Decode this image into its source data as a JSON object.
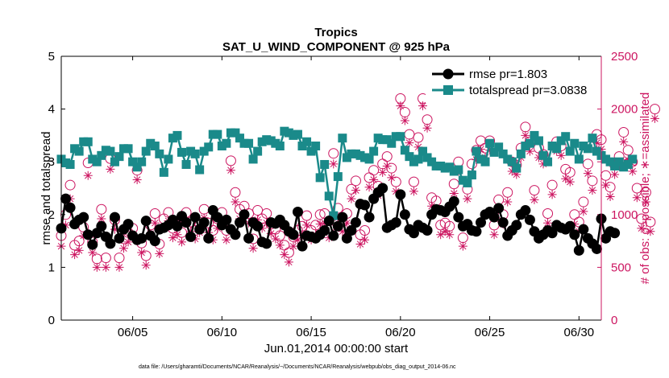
{
  "chart_data": {
    "type": "line",
    "title": "Tropics",
    "subtitle": "SAT_U_WIND_COMPONENT @ 925 hPa",
    "xlabel": "Jun.01,2014 00:00:00 start",
    "ylabel_left": "rmse and totalspread",
    "ylabel_right": "# of obs: o=possible; ∗=assimilated",
    "footnote": "data file: /Users/gharamti/Documents/NCAR/Reanalysis/~/Documents/NCAR/Reanalysis/webpub/obs_diag_output_2014-06.nc",
    "x_range_days": [
      1.0,
      31.25
    ],
    "ylim_left": [
      0,
      5
    ],
    "ylim_right": [
      0,
      2500
    ],
    "x_ticks": [
      5,
      10,
      15,
      20,
      25,
      30
    ],
    "x_tick_labels": [
      "06/05",
      "06/10",
      "06/15",
      "06/20",
      "06/25",
      "06/30"
    ],
    "y_left_ticks": [
      "0",
      "1",
      "2",
      "3",
      "4",
      "5"
    ],
    "y_right_ticks": [
      "0",
      "500",
      "1000",
      "1500",
      "2000",
      "2500"
    ],
    "colors": {
      "rmse": "#000000",
      "spread": "#1a8a8a",
      "obs": "#cc1560"
    },
    "x_start": 1.0,
    "x_step": 0.25,
    "series": [
      {
        "name": "rmse",
        "legend": "rmse pr=1.803",
        "axis": "left",
        "values": [
          1.74,
          2.3,
          2.13,
          1.82,
          1.9,
          1.95,
          1.62,
          1.43,
          1.65,
          1.78,
          1.58,
          1.45,
          1.95,
          1.55,
          1.72,
          1.82,
          1.6,
          1.52,
          1.55,
          1.88,
          1.6,
          1.5,
          1.72,
          1.75,
          1.8,
          1.9,
          1.78,
          1.97,
          1.85,
          1.58,
          1.95,
          1.72,
          1.85,
          1.55,
          2.08,
          1.95,
          1.8,
          1.9,
          1.72,
          1.62,
          1.85,
          2.0,
          1.55,
          1.85,
          1.78,
          1.48,
          1.45,
          1.85,
          1.83,
          1.9,
          1.8,
          1.68,
          1.62,
          2.05,
          1.4,
          1.6,
          1.58,
          1.55,
          1.62,
          1.7,
          1.88,
          1.6,
          1.78,
          1.95,
          1.55,
          1.7,
          1.85,
          2.2,
          2.18,
          1.95,
          2.3,
          2.42,
          2.5,
          1.75,
          1.8,
          1.85,
          2.38,
          2.0,
          1.72,
          1.65,
          1.8,
          1.75,
          1.7,
          2.0,
          2.1,
          2.08,
          2.05,
          2.15,
          2.25,
          1.95,
          1.78,
          1.82,
          1.7,
          1.68,
          1.85,
          2.0,
          2.05,
          1.95,
          2.12,
          1.85,
          1.6,
          1.7,
          1.8,
          2.0,
          2.08,
          1.9,
          1.68,
          1.55,
          1.62,
          1.7,
          1.65,
          1.8,
          1.75,
          1.72,
          1.78,
          1.62,
          1.32,
          1.72,
          1.55,
          1.45,
          1.35,
          1.92,
          1.55,
          1.68,
          1.65
        ]
      },
      {
        "name": "totalspread",
        "legend": "totalspread pr=3.0838",
        "axis": "left",
        "values": [
          3.05,
          2.98,
          2.95,
          3.25,
          3.2,
          3.38,
          3.38,
          3.05,
          3.0,
          3.12,
          3.22,
          3.2,
          3.0,
          3.1,
          3.25,
          3.25,
          3.0,
          2.9,
          3.0,
          3.2,
          3.35,
          3.3,
          3.15,
          2.8,
          3.05,
          3.45,
          3.5,
          3.18,
          2.95,
          3.2,
          3.15,
          2.85,
          3.2,
          3.28,
          3.52,
          3.52,
          3.3,
          3.35,
          3.55,
          3.55,
          3.45,
          3.35,
          3.35,
          3.05,
          3.2,
          3.38,
          3.42,
          3.4,
          3.35,
          3.3,
          3.58,
          3.55,
          3.5,
          3.52,
          3.3,
          3.38,
          3.2,
          3.3,
          2.7,
          2.95,
          2.35,
          1.98,
          2.72,
          3.45,
          3.08,
          3.15,
          3.15,
          3.12,
          3.08,
          3.05,
          3.2,
          3.45,
          3.42,
          3.42,
          3.35,
          3.48,
          3.48,
          3.22,
          3.1,
          3.0,
          3.05,
          3.2,
          3.08,
          3.0,
          2.92,
          2.92,
          2.88,
          2.9,
          2.82,
          2.85,
          2.65,
          2.6,
          2.75,
          3.2,
          3.05,
          3.0,
          3.35,
          3.18,
          3.28,
          3.15,
          3.05,
          3.0,
          2.88,
          3.15,
          3.3,
          3.35,
          3.5,
          3.4,
          3.12,
          3.0,
          3.3,
          3.25,
          3.4,
          3.48,
          3.2,
          3.35,
          3.05,
          3.3,
          3.25,
          3.45,
          3.2,
          3.12,
          3.05,
          3.0,
          2.92,
          3.0,
          2.9,
          2.95,
          3.05
        ]
      },
      {
        "name": "obs_possible",
        "axis": "right",
        "values": [
          800,
          1000,
          1280,
          710,
          750,
          880,
          1490,
          740,
          580,
          1050,
          590,
          1530,
          950,
          590,
          770,
          830,
          870,
          1420,
          730,
          610,
          900,
          1010,
          720,
          960,
          1020,
          870,
          900,
          830,
          1020,
          930,
          850,
          910,
          1050,
          920,
          850,
          960,
          1020,
          850,
          1510,
          1210,
          1050,
          1080,
          1010,
          770,
          1040,
          960,
          1010,
          910,
          860,
          800,
          710,
          640,
          790,
          850,
          890,
          990,
          850,
          900,
          1000,
          1010,
          870,
          1580,
          1060,
          930,
          1010,
          1240,
          1320,
          810,
          850,
          1350,
          1420,
          1270,
          1480,
          1550,
          1440,
          1310,
          2100,
          1970,
          1760,
          1310,
          1730,
          2100,
          1900,
          1160,
          1130,
          900,
          920,
          890,
          1290,
          1500,
          780,
          1240,
          1480,
          1610,
          1700,
          1630,
          1700,
          900,
          1140,
          1000,
          1210,
          1500,
          1470,
          1630,
          1830,
          1690,
          1230,
          1630,
          1570,
          1010,
          1280,
          1690,
          1650,
          1430,
          1400,
          1000,
          930,
          1120,
          1480,
          1320,
          1760,
          1710,
          1370,
          1260,
          1470,
          1550,
          1780,
          1610,
          1500,
          1250,
          960,
          1210,
          930,
          2000
        ]
      },
      {
        "name": "obs_assimilated",
        "axis": "right",
        "values": [
          700,
          900,
          1150,
          620,
          660,
          800,
          1370,
          640,
          500,
          960,
          500,
          1430,
          860,
          500,
          680,
          740,
          780,
          1330,
          640,
          520,
          820,
          920,
          630,
          870,
          940,
          780,
          810,
          740,
          930,
          840,
          770,
          830,
          970,
          830,
          760,
          870,
          930,
          760,
          1420,
          1120,
          960,
          990,
          920,
          680,
          950,
          870,
          920,
          820,
          770,
          710,
          620,
          550,
          700,
          760,
          800,
          900,
          760,
          810,
          910,
          920,
          780,
          1480,
          970,
          840,
          920,
          1150,
          1230,
          720,
          760,
          1260,
          1330,
          1180,
          1400,
          1460,
          1350,
          1220,
          2030,
          1890,
          1680,
          1220,
          1640,
          2030,
          1820,
          1080,
          1050,
          810,
          840,
          810,
          1200,
          1410,
          700,
          1150,
          1390,
          1520,
          1620,
          1540,
          1610,
          810,
          1060,
          910,
          1120,
          1410,
          1380,
          1540,
          1750,
          1600,
          1140,
          1540,
          1480,
          920,
          1190,
          1600,
          1560,
          1340,
          1310,
          910,
          840,
          1030,
          1390,
          1230,
          1680,
          1620,
          1280,
          1170,
          1380,
          1460,
          1690,
          1520,
          1410,
          1160,
          870,
          1120,
          840,
          1910
        ]
      }
    ]
  }
}
